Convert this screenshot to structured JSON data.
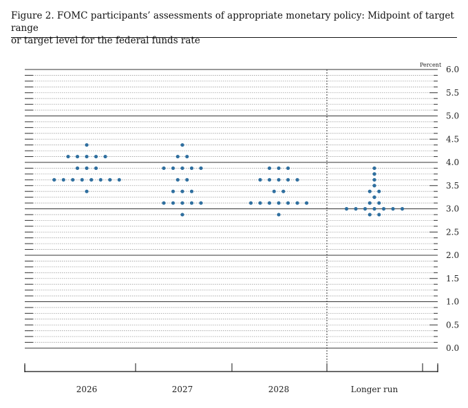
{
  "caption": {
    "line1": "Figure 2. FOMC participants’ assessments of appropriate monetary policy: Midpoint of target range",
    "line2": "or target level for the federal funds rate"
  },
  "chart_data": {
    "type": "scatter",
    "ylabel": "Percent",
    "ylim": [
      0,
      6
    ],
    "ytick_step": 0.125,
    "yticks_labeled": [
      6.0,
      5.5,
      5.0,
      4.5,
      4.0,
      3.5,
      3.0,
      2.5,
      2.0,
      1.5,
      1.0,
      0.5,
      0.0
    ],
    "ytick_label_text": [
      "6.0",
      "5.5",
      "5.0",
      "4.5",
      "4.0",
      "3.5",
      "3.0",
      "2.5",
      "2.0",
      "1.5",
      "1.0",
      "0.5",
      "0.0"
    ],
    "categories": [
      "2026",
      "2027",
      "2028",
      "Longer run"
    ],
    "dot_color": "#2f6f9f",
    "grid": "solid lines at whole percents, dotted lines at quarter points",
    "separator": "dotted vertical line before Longer run",
    "dots": [
      {
        "category": "2026",
        "levels": [
          {
            "y": 4.375,
            "count": 1
          },
          {
            "y": 4.125,
            "count": 5
          },
          {
            "y": 3.875,
            "count": 3
          },
          {
            "y": 3.625,
            "count": 8
          },
          {
            "y": 3.375,
            "count": 1
          }
        ]
      },
      {
        "category": "2027",
        "levels": [
          {
            "y": 4.375,
            "count": 1
          },
          {
            "y": 4.125,
            "count": 2
          },
          {
            "y": 3.875,
            "count": 5
          },
          {
            "y": 3.625,
            "count": 2
          },
          {
            "y": 3.375,
            "count": 3
          },
          {
            "y": 3.125,
            "count": 5
          },
          {
            "y": 2.875,
            "count": 1
          }
        ]
      },
      {
        "category": "2028",
        "levels": [
          {
            "y": 3.875,
            "count": 3
          },
          {
            "y": 3.625,
            "count": 5
          },
          {
            "y": 3.375,
            "count": 2
          },
          {
            "y": 3.125,
            "count": 7
          },
          {
            "y": 2.875,
            "count": 1
          }
        ]
      },
      {
        "category": "Longer run",
        "levels": [
          {
            "y": 3.875,
            "count": 1
          },
          {
            "y": 3.75,
            "count": 1
          },
          {
            "y": 3.625,
            "count": 1
          },
          {
            "y": 3.5,
            "count": 1
          },
          {
            "y": 3.375,
            "count": 2
          },
          {
            "y": 3.25,
            "count": 1
          },
          {
            "y": 3.125,
            "count": 2
          },
          {
            "y": 3.0,
            "count": 7
          },
          {
            "y": 2.875,
            "count": 2
          }
        ]
      }
    ]
  }
}
